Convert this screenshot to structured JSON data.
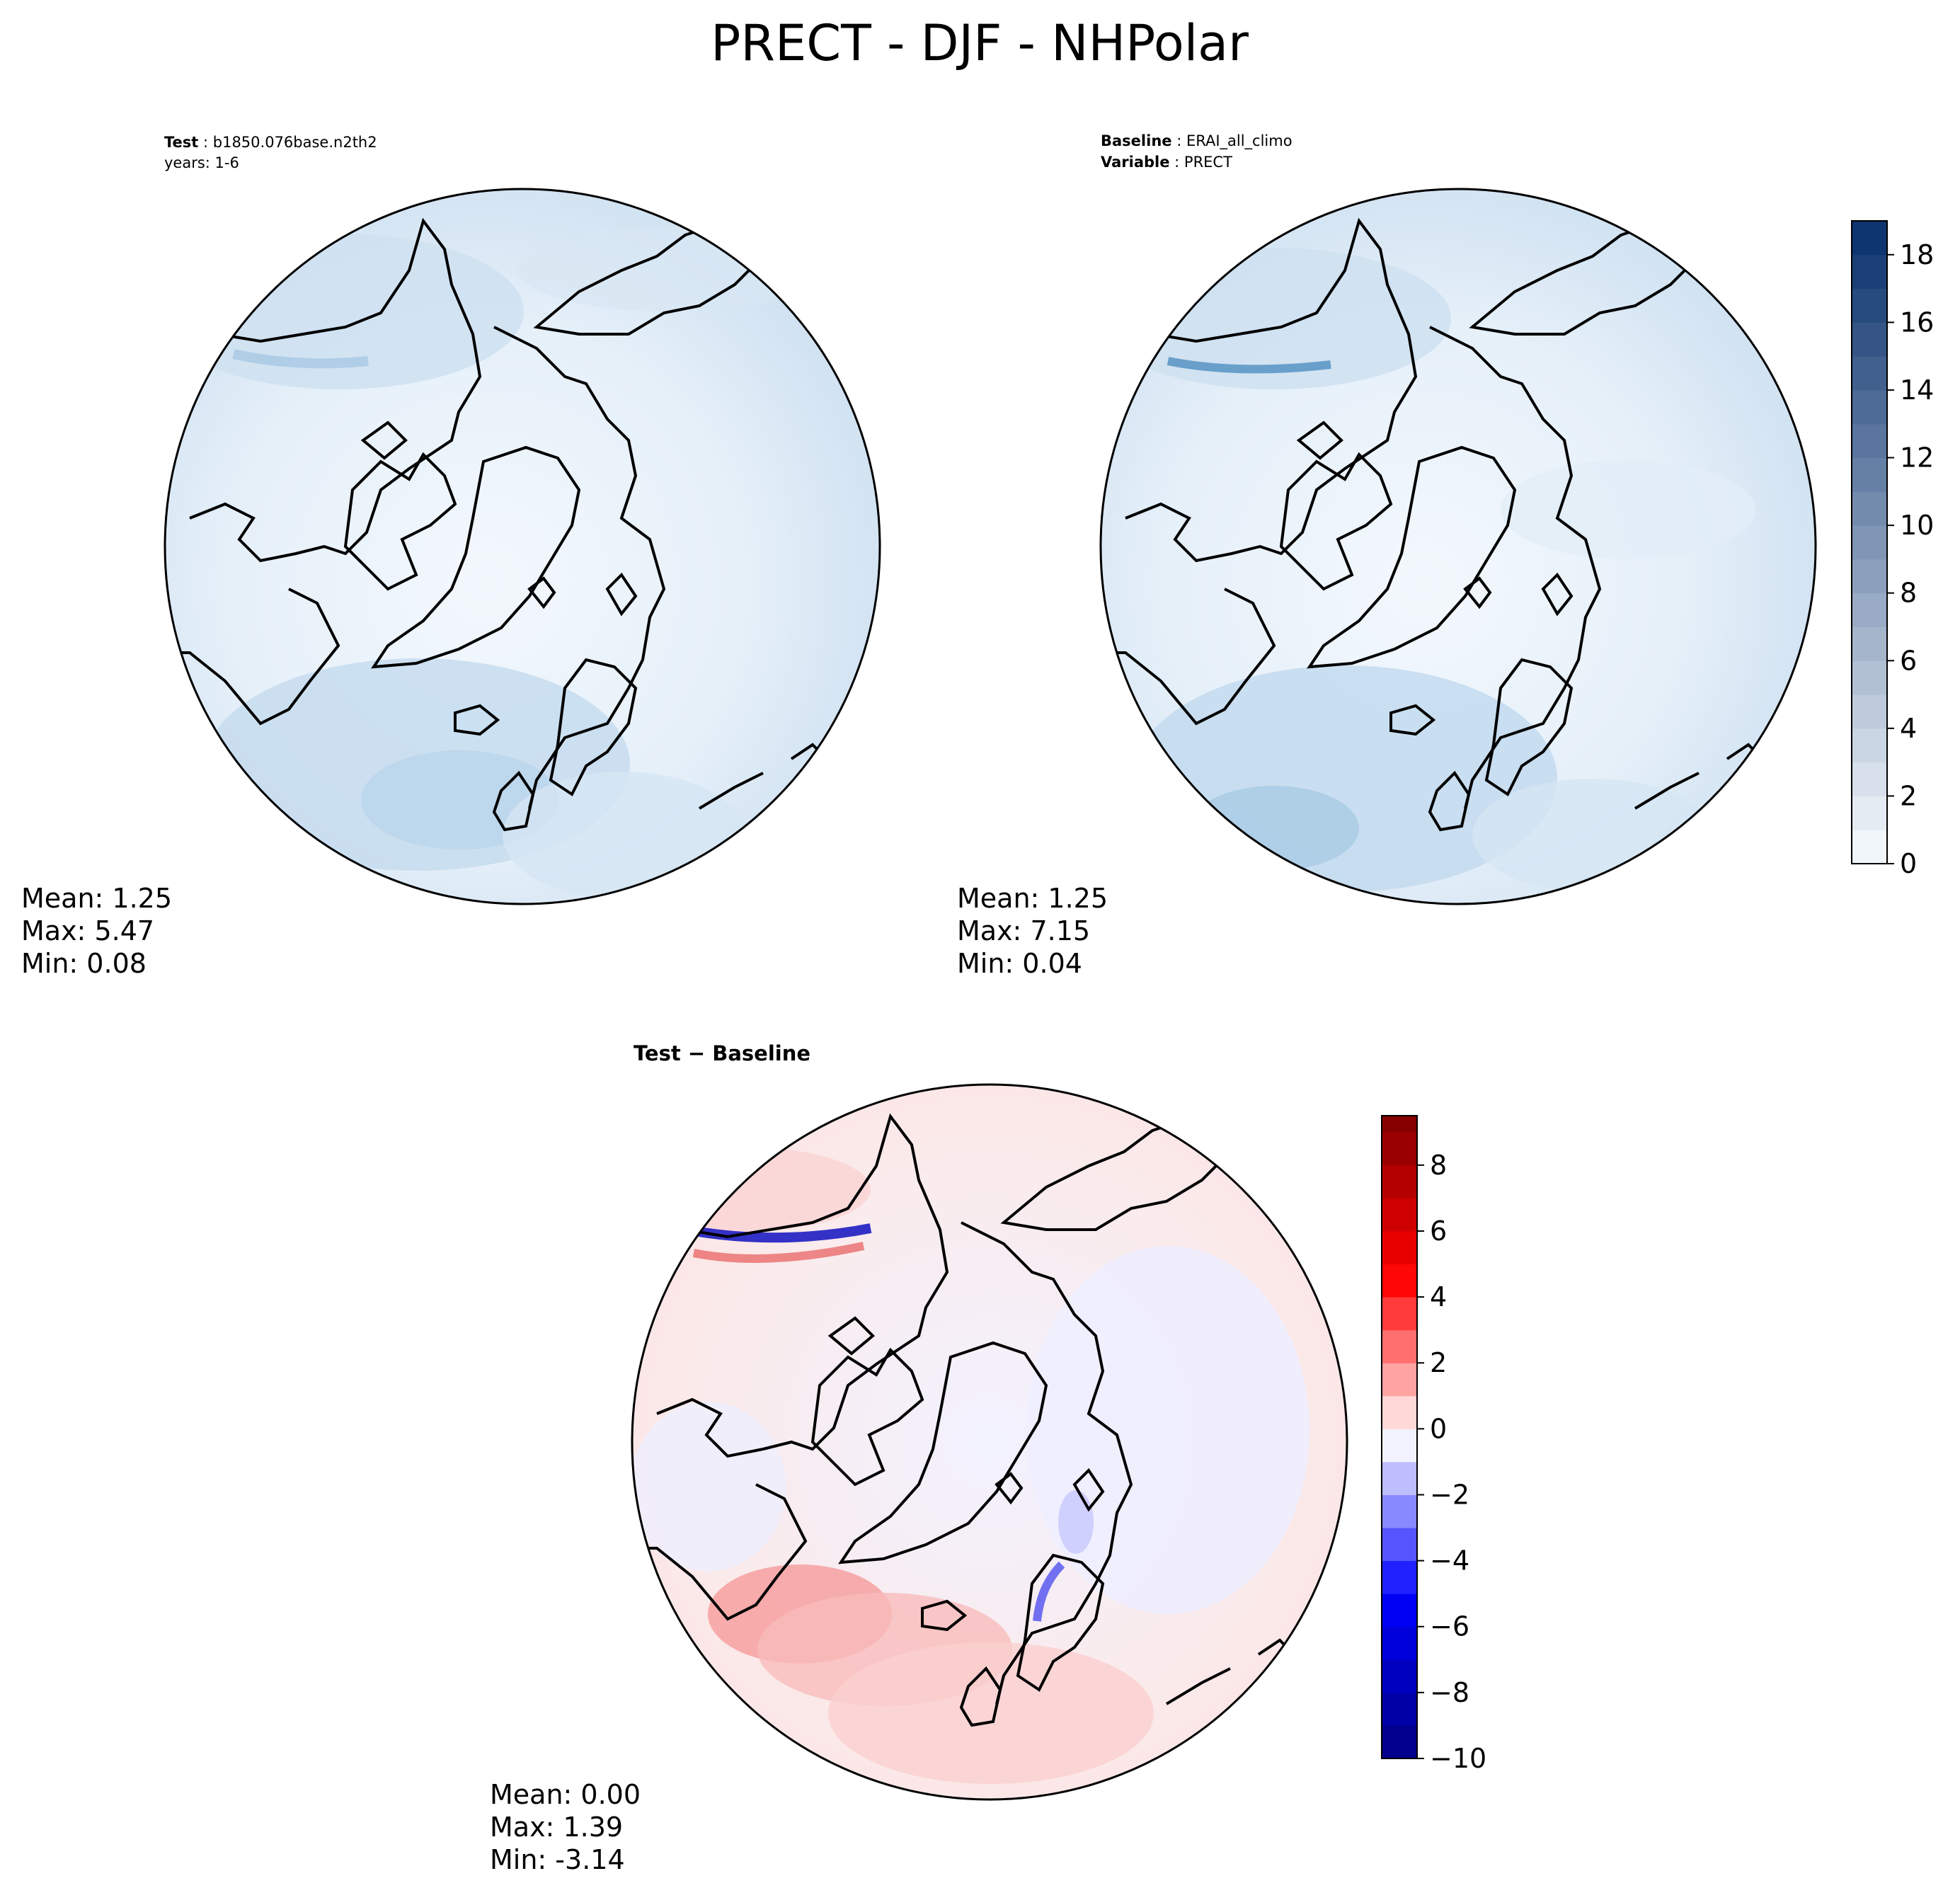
{
  "title": "PRECT - DJF - NHPolar",
  "panels": [
    {
      "id": "test",
      "header": [
        {
          "bold": "Test",
          "rest": " : b1850.076base.n2th2"
        },
        {
          "bold": "",
          "rest": "years: 1-6"
        }
      ],
      "stats": [
        "Mean:  1.25",
        "Max:  5.47",
        "Min:  0.08"
      ],
      "colormap": "sequential-blue"
    },
    {
      "id": "baseline",
      "header": [
        {
          "bold": "Baseline",
          "rest": " : ERAI_all_climo"
        },
        {
          "bold": "Variable",
          "rest": " : PRECT"
        }
      ],
      "stats": [
        "Mean:  1.25",
        "Max:  7.15",
        "Min:  0.04"
      ],
      "colormap": "sequential-blue"
    },
    {
      "id": "diff",
      "header": [
        {
          "bold": "Test − Baseline",
          "rest": ""
        }
      ],
      "stats": [
        "Mean:  0.00",
        "Max:  1.39",
        "Min: -3.14"
      ],
      "colormap": "diverging-blue-red"
    }
  ],
  "colorbars": [
    {
      "id": "prect-colorbar",
      "min": 0,
      "max": 19,
      "step": 1,
      "ticks": [
        "0",
        "2",
        "4",
        "6",
        "8",
        "10",
        "12",
        "14",
        "16",
        "18"
      ],
      "colors": [
        "#f7fbff",
        "#08306b"
      ]
    },
    {
      "id": "diff-colorbar",
      "min": -10,
      "max": 9.5,
      "step": 1,
      "ticks": [
        "−10",
        "−8",
        "−6",
        "−4",
        "−2",
        "0",
        "2",
        "4",
        "6",
        "8"
      ],
      "colors": [
        "#000080",
        "#0000ff",
        "#ffffff",
        "#ff0000",
        "#800000"
      ]
    }
  ]
}
